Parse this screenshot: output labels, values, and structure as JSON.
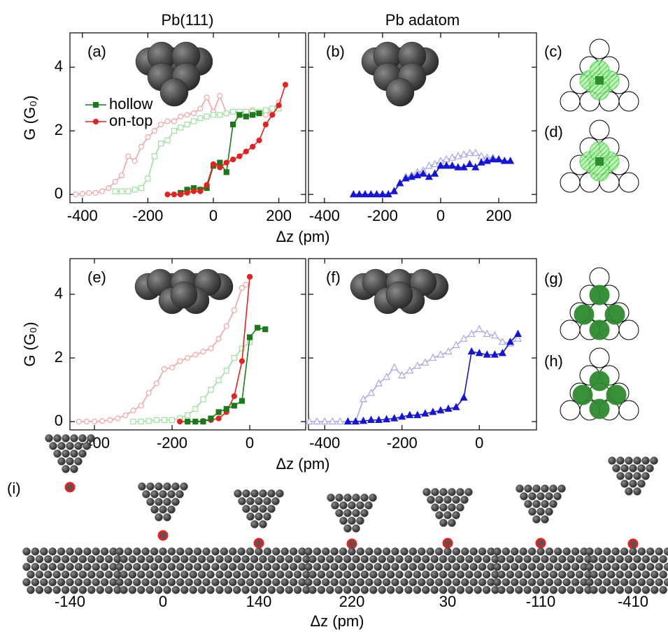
{
  "column_titles": [
    "Pb(111)",
    "Pb adatom"
  ],
  "chart_data": [
    {
      "type": "line",
      "title": "(a)",
      "xlabel": "Δz (pm)",
      "ylabel": "G (G₀)",
      "legend": "upper left",
      "ytick_labels": true,
      "xlim": [
        -438,
        282
      ],
      "ylim": [
        -0.26,
        5.08
      ],
      "xticks": [
        -400,
        -200,
        0,
        200
      ],
      "yticks": [
        0,
        2,
        4
      ],
      "series": [
        {
          "color": "#f4a3a3",
          "marker": "circle",
          "filled": false,
          "x": [
            -420,
            -400,
            -380,
            -360,
            -340,
            -320,
            -300,
            -280,
            -260,
            -240,
            -220,
            -200,
            -180,
            -160,
            -140,
            -120,
            -100,
            -80,
            -60,
            -40,
            -20,
            0,
            20,
            40,
            60,
            80,
            100,
            120,
            140,
            160,
            180,
            200
          ],
          "values": [
            0,
            0.02,
            0.05,
            0.05,
            0.1,
            0.2,
            0.4,
            0.6,
            1.2,
            1.05,
            1.5,
            1.8,
            2.0,
            2.2,
            2.3,
            2.3,
            2.45,
            2.5,
            2.55,
            2.7,
            3.05,
            2.6,
            3.1,
            2.55,
            2.6,
            2.55,
            2.6,
            2.65,
            2.6,
            2.5,
            2.65,
            2.9
          ]
        },
        {
          "color": "#9de09d",
          "marker": "square",
          "filled": false,
          "x": [
            -300,
            -280,
            -260,
            -240,
            -220,
            -200,
            -180,
            -160,
            -140,
            -120,
            -100,
            -80,
            -60,
            -40,
            -20,
            0,
            20,
            40,
            60,
            80,
            100,
            120,
            140,
            160,
            180,
            200
          ],
          "values": [
            0.1,
            0.1,
            0.1,
            0.15,
            0.2,
            0.5,
            1.2,
            1.6,
            1.7,
            2.0,
            2.1,
            2.2,
            2.3,
            2.4,
            2.45,
            2.5,
            2.5,
            2.55,
            2.6,
            2.6,
            2.6,
            2.6,
            2.6,
            2.65,
            2.7,
            2.7
          ]
        },
        {
          "name": "hollow",
          "color": "#1a7a1a",
          "marker": "square",
          "filled": true,
          "x": [
            -100,
            -80,
            -60,
            -40,
            -20,
            0,
            20,
            40,
            60,
            80,
            100,
            120,
            140
          ],
          "values": [
            0.05,
            0.15,
            0.2,
            0.15,
            0.2,
            0.9,
            1.0,
            0.7,
            2.2,
            2.5,
            2.45,
            2.5,
            2.55
          ]
        },
        {
          "name": "on-top",
          "color": "#e8201e",
          "marker": "circle",
          "filled": true,
          "x": [
            -140,
            -120,
            -100,
            -80,
            -60,
            -40,
            -20,
            0,
            20,
            40,
            60,
            80,
            100,
            120,
            140,
            160,
            180,
            200,
            220
          ],
          "values": [
            0,
            0,
            0,
            0.05,
            0.1,
            0.1,
            0.3,
            0.95,
            0.85,
            1.0,
            1.1,
            1.2,
            1.35,
            1.5,
            1.7,
            2.2,
            2.5,
            2.8,
            3.45
          ]
        }
      ]
    },
    {
      "type": "line",
      "title": "(b)",
      "ytick_labels": false,
      "xlim": [
        -455,
        330
      ],
      "ylim": [
        -0.26,
        5.08
      ],
      "xticks": [
        -400,
        -200,
        0,
        200
      ],
      "yticks": [
        0,
        2,
        4
      ],
      "series": [
        {
          "color": "#a8a8ec",
          "marker": "triangle",
          "filled": false,
          "x": [
            -160,
            -140,
            -120,
            -100,
            -80,
            -60,
            -40,
            -20,
            0,
            20,
            40,
            60,
            80,
            100,
            120,
            140,
            160,
            180,
            200,
            220
          ],
          "values": [
            0.1,
            0.35,
            0.55,
            0.6,
            0.7,
            0.75,
            0.9,
            0.95,
            1.05,
            1.1,
            1.15,
            1.2,
            1.25,
            1.3,
            1.3,
            1.2,
            1.15,
            1.15,
            1.1,
            1.05
          ]
        },
        {
          "color": "#1414d8",
          "marker": "triangle",
          "filled": true,
          "x": [
            -300,
            -280,
            -260,
            -240,
            -220,
            -200,
            -180,
            -160,
            -140,
            -120,
            -100,
            -80,
            -60,
            -40,
            -20,
            0,
            20,
            40,
            60,
            80,
            100,
            120,
            140,
            160,
            180,
            200,
            220,
            240
          ],
          "values": [
            0,
            0,
            0,
            0,
            0,
            0,
            0,
            0.1,
            0.35,
            0.5,
            0.55,
            0.6,
            0.65,
            0.55,
            0.65,
            0.9,
            0.9,
            0.9,
            0.85,
            0.85,
            0.95,
            0.85,
            1.0,
            1.05,
            1.1,
            1.1,
            1.05,
            1.05
          ]
        }
      ]
    },
    {
      "type": "line",
      "title": "(e)",
      "xlabel": "Δz (pm)",
      "ylabel": "G (G₀)",
      "ytick_labels": true,
      "xlim": [
        -463,
        144
      ],
      "ylim": [
        -0.26,
        5.12
      ],
      "xticks": [
        -400,
        -200,
        0
      ],
      "yticks": [
        0,
        2,
        4
      ],
      "series": [
        {
          "color": "#f4a3a3",
          "marker": "circle",
          "filled": false,
          "x": [
            -440,
            -420,
            -400,
            -380,
            -360,
            -340,
            -320,
            -300,
            -280,
            -260,
            -240,
            -220,
            -200,
            -180,
            -160,
            -140,
            -120,
            -100,
            -80,
            -60,
            -40,
            -20,
            -10
          ],
          "values": [
            0,
            0,
            0,
            0.02,
            0.05,
            0.1,
            0.2,
            0.35,
            0.5,
            0.9,
            1.2,
            1.65,
            1.7,
            1.9,
            2.0,
            2.1,
            2.2,
            2.3,
            2.6,
            3.0,
            3.5,
            4.2,
            4.3
          ]
        },
        {
          "color": "#9de09d",
          "marker": "square",
          "filled": false,
          "x": [
            -300,
            -280,
            -260,
            -240,
            -220,
            -200,
            -180,
            -160,
            -140,
            -120,
            -100,
            -80,
            -60,
            -40,
            -20,
            0
          ],
          "values": [
            0,
            0,
            0.02,
            0.05,
            0.05,
            0.05,
            0.1,
            0.2,
            0.4,
            0.7,
            1.0,
            1.3,
            1.6,
            2.0,
            2.3,
            2.5
          ]
        },
        {
          "color": "#e8201e",
          "marker": "circle",
          "filled": true,
          "x": [
            -180,
            -160,
            -140,
            -120,
            -100,
            -80,
            -60,
            -40,
            -20,
            0
          ],
          "values": [
            0,
            0,
            0,
            0.02,
            0.05,
            0.1,
            0.3,
            0.8,
            1.9,
            4.55
          ]
        },
        {
          "color": "#1a7a1a",
          "marker": "square",
          "filled": true,
          "x": [
            -160,
            -140,
            -120,
            -100,
            -80,
            -60,
            -40,
            -20,
            0,
            20,
            40
          ],
          "values": [
            0,
            0,
            0,
            0.1,
            0.3,
            0.4,
            0.5,
            0.65,
            2.65,
            2.95,
            2.9
          ]
        }
      ]
    },
    {
      "type": "line",
      "title": "(f)",
      "ytick_labels": false,
      "xlim": [
        -442,
        148
      ],
      "ylim": [
        -0.26,
        5.12
      ],
      "xticks": [
        -400,
        -200,
        0
      ],
      "yticks": [
        0,
        2,
        4
      ],
      "series": [
        {
          "color": "#a8a8ec",
          "marker": "triangle",
          "filled": false,
          "x": [
            -440,
            -420,
            -400,
            -380,
            -360,
            -340,
            -320,
            -300,
            -280,
            -260,
            -240,
            -220,
            -200,
            -180,
            -160,
            -140,
            -120,
            -100,
            -80,
            -60,
            -40,
            -20,
            0,
            20,
            40,
            60,
            80,
            100
          ],
          "values": [
            0,
            0,
            0,
            0,
            0,
            0,
            0,
            0.7,
            0.9,
            1.2,
            1.4,
            1.7,
            1.45,
            1.6,
            1.75,
            1.85,
            2.0,
            2.1,
            2.2,
            2.4,
            2.6,
            2.75,
            2.9,
            2.75,
            2.7,
            2.5,
            2.45,
            2.6
          ]
        },
        {
          "color": "#1414d8",
          "marker": "triangle",
          "filled": true,
          "x": [
            -340,
            -320,
            -300,
            -280,
            -260,
            -240,
            -220,
            -200,
            -180,
            -160,
            -140,
            -120,
            -100,
            -80,
            -60,
            -40,
            -20,
            0,
            20,
            40,
            60,
            80,
            100
          ],
          "values": [
            0,
            0,
            0.02,
            0.05,
            0.05,
            0.07,
            0.1,
            0.15,
            0.2,
            0.2,
            0.25,
            0.3,
            0.35,
            0.4,
            0.45,
            0.75,
            2.2,
            2.15,
            2.1,
            2.1,
            2.15,
            2.5,
            2.75
          ]
        }
      ]
    }
  ],
  "diagrams": [
    "(c)",
    "(d)",
    "(g)",
    "(h)"
  ],
  "structures": {
    "label": "(i)",
    "dz": [
      -140,
      0,
      140,
      220,
      30,
      -110,
      -410
    ],
    "xlabel": "Δz (pm)"
  }
}
